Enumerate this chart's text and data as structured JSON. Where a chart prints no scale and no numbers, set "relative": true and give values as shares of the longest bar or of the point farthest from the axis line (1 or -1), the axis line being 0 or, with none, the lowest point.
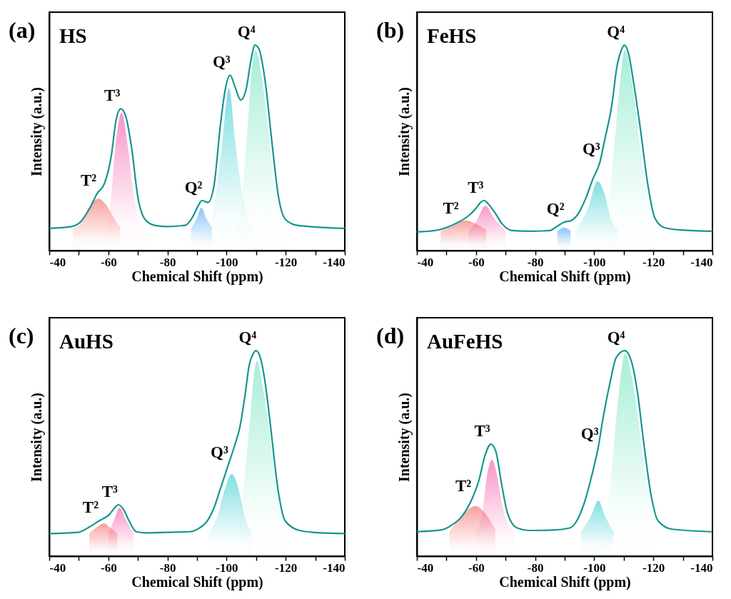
{
  "chart_data": [
    {
      "type": "line",
      "title": "(a)",
      "subtitle": "HS",
      "xlabel": "Chemical Shift (ppm)",
      "ylabel": "Intensity (a.u.)",
      "relative": true,
      "xlim": [
        -40,
        -140
      ],
      "xticks": [
        -40,
        {
          "value": -50,
          "label": null
        },
        -60,
        {
          "value": -70,
          "label": null
        },
        -80,
        {
          "value": -90,
          "label": null
        },
        -100,
        {
          "value": -110,
          "label": null
        },
        -120,
        {
          "value": -130,
          "label": null
        },
        -140
      ],
      "series": [
        {
          "type": "area",
          "color": "#f0645f",
          "x": [
            -48,
            -51,
            -53,
            -55,
            -56.7,
            -58.5,
            -60.3,
            -62,
            -64
          ],
          "values": [
            0.108,
            0.14,
            0.198,
            0.24,
            0.253,
            0.235,
            0.198,
            0.155,
            0.115
          ]
        },
        {
          "type": "area",
          "color": "#f54ea4",
          "x": [
            -59,
            -60.5,
            -62.3,
            -64.5,
            -66.7,
            -68.5,
            -70,
            -72.5
          ],
          "values": [
            0.108,
            0.2,
            0.497,
            0.671,
            0.497,
            0.28,
            0.17,
            0.115
          ]
        },
        {
          "type": "area",
          "color": "#3d9df5",
          "x": [
            -88,
            -90,
            -91.5,
            -93,
            -95
          ],
          "values": [
            0.108,
            0.16,
            0.209,
            0.16,
            0.115
          ]
        },
        {
          "type": "area",
          "color": "#2cc9cc",
          "x": [
            -93,
            -95.5,
            -98.5,
            -100.8,
            -103,
            -105,
            -107,
            -109
          ],
          "values": [
            0.108,
            0.2,
            0.52,
            0.79,
            0.52,
            0.3,
            0.17,
            0.115
          ]
        },
        {
          "type": "area",
          "color": "#6ee3bd",
          "x": [
            -103,
            -105,
            -107,
            -108.5,
            -109.8,
            -111.5,
            -114.2,
            -116.5,
            -119
          ],
          "values": [
            0.108,
            0.22,
            0.577,
            0.88,
            0.974,
            0.88,
            0.577,
            0.26,
            0.12
          ]
        },
        {
          "type": "line",
          "color": "#17958f",
          "x": [
            -40,
            -47.4,
            -50.6,
            -53.8,
            -56.2,
            -58.6,
            -61,
            -62.6,
            -64.2,
            -65.8,
            -67.9,
            -69.9,
            -72.4,
            -75.6,
            -79.6,
            -86,
            -88.5,
            -90.5,
            -91.7,
            -93.7,
            -95.7,
            -98.1,
            -99.7,
            -101.2,
            -102.9,
            -104.8,
            -106.6,
            -108.2,
            -109.6,
            -111,
            -113,
            -115.4,
            -117.5,
            -119.9,
            -123.9,
            -140
          ],
          "values": [
            0.108,
            0.117,
            0.14,
            0.209,
            0.278,
            0.324,
            0.462,
            0.634,
            0.69,
            0.657,
            0.497,
            0.267,
            0.152,
            0.123,
            0.117,
            0.123,
            0.163,
            0.221,
            0.244,
            0.234,
            0.313,
            0.634,
            0.795,
            0.853,
            0.795,
            0.732,
            0.784,
            0.922,
            1,
            0.979,
            0.83,
            0.52,
            0.267,
            0.152,
            0.123,
            0.108
          ]
        }
      ],
      "annotations": [
        {
          "text": "T²",
          "x": -56.2,
          "y": 0.278
        },
        {
          "text": "T³",
          "x": -64.2,
          "y": 0.69
        },
        {
          "text": "Q²",
          "x": -91.7,
          "y": 0.244
        },
        {
          "text": "Q³",
          "x": -101.2,
          "y": 0.853
        },
        {
          "text": "Q⁴",
          "x": -109.6,
          "y": 1
        }
      ]
    },
    {
      "type": "line",
      "title": "(b)",
      "subtitle": "FeHS",
      "xlabel": "Chemical Shift (ppm)",
      "ylabel": "Intensity (a.u.)",
      "relative": true,
      "xlim": [
        -40,
        -140
      ],
      "xticks": [
        -40,
        {
          "value": -50,
          "label": null
        },
        -60,
        {
          "value": -70,
          "label": null
        },
        -80,
        {
          "value": -90,
          "label": null
        },
        -100,
        {
          "value": -110,
          "label": null
        },
        -120,
        {
          "value": -130,
          "label": null
        },
        -140
      ],
      "series": [
        {
          "type": "area",
          "color": "#f0645f",
          "x": [
            -48,
            -52,
            -56.4,
            -60,
            -63.5
          ],
          "values": [
            0.094,
            0.12,
            0.147,
            0.13,
            0.1
          ]
        },
        {
          "type": "area",
          "color": "#f54ea4",
          "x": [
            -57.5,
            -60,
            -63.2,
            -66,
            -70
          ],
          "values": [
            0.094,
            0.14,
            0.218,
            0.16,
            0.096
          ]
        },
        {
          "type": "area",
          "color": "#3d9df5",
          "x": [
            -87.5,
            -89.8,
            -92
          ],
          "values": [
            0.094,
            0.112,
            0.096
          ]
        },
        {
          "type": "area",
          "color": "#2cc9cc",
          "x": [
            -93.5,
            -97.9,
            -101.1,
            -103.5,
            -105.5,
            -108
          ],
          "values": [
            0.094,
            0.206,
            0.338,
            0.276,
            0.16,
            0.1
          ]
        },
        {
          "type": "area",
          "color": "#6ee3bd",
          "x": [
            -102.5,
            -105,
            -107.5,
            -110.4,
            -113,
            -115.5,
            -118,
            -121
          ],
          "values": [
            0.094,
            0.25,
            0.62,
            0.976,
            0.8,
            0.5,
            0.25,
            0.1
          ]
        },
        {
          "type": "line",
          "color": "#17958f",
          "x": [
            -40,
            -46.3,
            -50.3,
            -54.4,
            -57.6,
            -60,
            -61.6,
            -62.8,
            -64,
            -66.5,
            -68.9,
            -72.1,
            -78.5,
            -85,
            -87.4,
            -89.8,
            -92.3,
            -94.7,
            -97.1,
            -99.5,
            -101.9,
            -103.5,
            -106,
            -107.6,
            -109.2,
            -110.2,
            -111.6,
            -113.2,
            -115.6,
            -118.1,
            -120.5,
            -123.7,
            -129.4,
            -140
          ],
          "values": [
            0.091,
            0.098,
            0.114,
            0.141,
            0.171,
            0.206,
            0.235,
            0.244,
            0.229,
            0.182,
            0.129,
            0.098,
            0.094,
            0.098,
            0.118,
            0.138,
            0.147,
            0.182,
            0.253,
            0.347,
            0.429,
            0.535,
            0.712,
            0.888,
            0.976,
            1,
            0.959,
            0.829,
            0.594,
            0.324,
            0.159,
            0.112,
            0.1,
            0.094
          ]
        }
      ],
      "annotations": [
        {
          "text": "T²",
          "x": -54.4,
          "y": 0.141
        },
        {
          "text": "T³",
          "x": -62.8,
          "y": 0.244
        },
        {
          "text": "Q²",
          "x": -89.8,
          "y": 0.138
        },
        {
          "text": "Q³",
          "x": -101.9,
          "y": 0.429
        },
        {
          "text": "Q⁴",
          "x": -110.2,
          "y": 1
        }
      ]
    },
    {
      "type": "line",
      "title": "(c)",
      "subtitle": "AuHS",
      "xlabel": "Chemical Shift (ppm)",
      "ylabel": "Intensity (a.u.)",
      "relative": true,
      "xlim": [
        -40,
        -140
      ],
      "xticks": [
        -40,
        {
          "value": -50,
          "label": null
        },
        -60,
        {
          "value": -70,
          "label": null
        },
        -80,
        {
          "value": -90,
          "label": null
        },
        -100,
        {
          "value": -110,
          "label": null
        },
        -120,
        {
          "value": -130,
          "label": null
        },
        -140
      ],
      "series": [
        {
          "type": "area",
          "color": "#f0645f",
          "x": [
            -53.5,
            -56,
            -58.5,
            -60.5,
            -63
          ],
          "values": [
            0.11,
            0.14,
            0.16,
            0.14,
            0.112
          ]
        },
        {
          "type": "area",
          "color": "#f54ea4",
          "x": [
            -60,
            -62,
            -63.8,
            -65.8,
            -68.5
          ],
          "values": [
            0.11,
            0.18,
            0.236,
            0.18,
            0.112
          ]
        },
        {
          "type": "area",
          "color": "#2cc9cc",
          "x": [
            -94,
            -97,
            -99.5,
            -101.7,
            -104,
            -106,
            -108.5
          ],
          "values": [
            0.11,
            0.2,
            0.33,
            0.4,
            0.33,
            0.2,
            0.115
          ]
        },
        {
          "type": "area",
          "color": "#6ee3bd",
          "x": [
            -103.5,
            -105.5,
            -107.5,
            -110.2,
            -112.5,
            -115,
            -117.5,
            -120
          ],
          "values": [
            0.11,
            0.3,
            0.6,
            0.95,
            0.8,
            0.55,
            0.27,
            0.115
          ]
        },
        {
          "type": "line",
          "color": "#17958f",
          "x": [
            -40,
            -49.7,
            -53.7,
            -56.9,
            -60.2,
            -62.2,
            -63.4,
            -65,
            -67,
            -69.4,
            -73.1,
            -79.5,
            -87.6,
            -90.8,
            -93.2,
            -95.6,
            -98.1,
            -100.5,
            -102.9,
            -104.5,
            -106.1,
            -107.7,
            -109,
            -110,
            -111.4,
            -113,
            -115,
            -117.4,
            -119.8,
            -124.7,
            -131.9,
            -140
          ],
          "values": [
            0.11,
            0.116,
            0.143,
            0.172,
            0.201,
            0.236,
            0.25,
            0.23,
            0.172,
            0.119,
            0.113,
            0.116,
            0.119,
            0.137,
            0.166,
            0.23,
            0.336,
            0.441,
            0.546,
            0.628,
            0.768,
            0.932,
            0.985,
            1,
            0.967,
            0.85,
            0.616,
            0.324,
            0.172,
            0.125,
            0.113,
            0.11
          ]
        }
      ],
      "annotations": [
        {
          "text": "T²",
          "x": -56.9,
          "y": 0.172
        },
        {
          "text": "T³",
          "x": -63.4,
          "y": 0.25
        },
        {
          "text": "Q³",
          "x": -100.5,
          "y": 0.441
        },
        {
          "text": "Q⁴",
          "x": -110,
          "y": 1
        }
      ]
    },
    {
      "type": "line",
      "title": "(d)",
      "subtitle": "AuFeHS",
      "xlabel": "Chemical Shift (ppm)",
      "ylabel": "Intensity (a.u.)",
      "relative": true,
      "xlim": [
        -40,
        -140
      ],
      "xticks": [
        -40,
        {
          "value": -50,
          "label": null
        },
        -60,
        {
          "value": -70,
          "label": null
        },
        -80,
        {
          "value": -90,
          "label": null
        },
        -100,
        {
          "value": -110,
          "label": null
        },
        -120,
        {
          "value": -130,
          "label": null
        },
        -140
      ],
      "series": [
        {
          "type": "area",
          "color": "#f0645f",
          "x": [
            -51,
            -55,
            -59.8,
            -63,
            -66.5
          ],
          "values": [
            0.119,
            0.19,
            0.244,
            0.21,
            0.13
          ]
        },
        {
          "type": "area",
          "color": "#f54ea4",
          "x": [
            -60,
            -62,
            -63.8,
            -65.4,
            -67,
            -69,
            -71,
            -73
          ],
          "values": [
            0.119,
            0.2,
            0.4,
            0.469,
            0.4,
            0.24,
            0.15,
            0.12
          ]
        },
        {
          "type": "area",
          "color": "#2cc9cc",
          "x": [
            -95.5,
            -99,
            -101.4,
            -103.5,
            -106.5
          ],
          "values": [
            0.119,
            0.2,
            0.271,
            0.2,
            0.12
          ]
        },
        {
          "type": "area",
          "color": "#6ee3bd",
          "x": [
            -103,
            -105.5,
            -108,
            -110.4,
            -113,
            -115.5,
            -118,
            -121.5
          ],
          "values": [
            0.119,
            0.35,
            0.75,
            0.985,
            0.85,
            0.6,
            0.32,
            0.125
          ]
        },
        {
          "type": "line",
          "color": "#17958f",
          "x": [
            -40,
            -48.1,
            -52.1,
            -55.3,
            -58.6,
            -61,
            -63,
            -65,
            -66.7,
            -68.7,
            -70.7,
            -73.9,
            -78,
            -86,
            -91.7,
            -94.1,
            -96.5,
            -99,
            -101.4,
            -103,
            -105.4,
            -107.4,
            -110.3,
            -112.7,
            -114.7,
            -116.7,
            -119.2,
            -121.6,
            -126.4,
            -140
          ],
          "values": [
            0.119,
            0.127,
            0.154,
            0.195,
            0.277,
            0.37,
            0.487,
            0.545,
            0.51,
            0.347,
            0.207,
            0.137,
            0.125,
            0.127,
            0.137,
            0.172,
            0.253,
            0.382,
            0.533,
            0.673,
            0.848,
            0.965,
            1,
            0.942,
            0.79,
            0.557,
            0.3,
            0.172,
            0.131,
            0.119
          ]
        }
      ],
      "annotations": [
        {
          "text": "T²",
          "x": -58.6,
          "y": 0.277
        },
        {
          "text": "T³",
          "x": -65,
          "y": 0.545
        },
        {
          "text": "Q³",
          "x": -101.4,
          "y": 0.533
        },
        {
          "text": "Q⁴",
          "x": -110.3,
          "y": 1
        }
      ]
    }
  ]
}
